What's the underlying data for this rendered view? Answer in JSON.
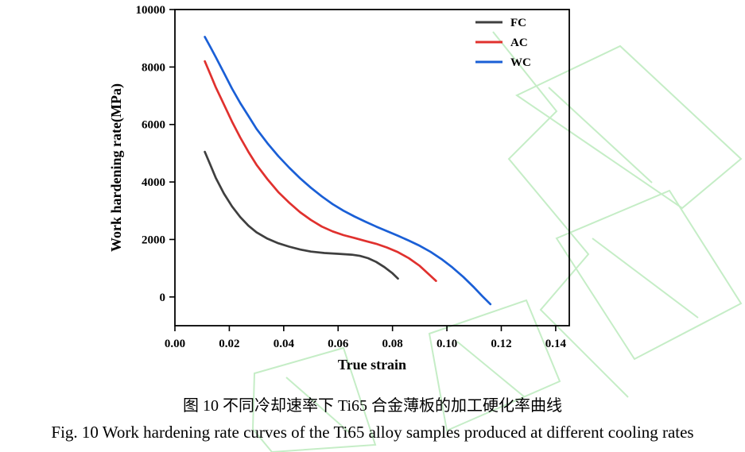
{
  "captions": {
    "chinese": "图 10  不同冷却速率下 Ti65 合金薄板的加工硬化率曲线",
    "english": "Fig. 10 Work hardening rate curves of the Ti65 alloy samples produced at different cooling rates"
  },
  "watermark_color": "#7fd882",
  "chart_data": {
    "type": "line",
    "title": "",
    "xlabel": "True strain",
    "ylabel": "Work hardening rate(MPa)",
    "xlim": [
      0.0,
      0.145
    ],
    "ylim": [
      -1000,
      10000
    ],
    "grid": false,
    "legend_position": "top-right",
    "xticks": [
      0.0,
      0.02,
      0.04,
      0.06,
      0.08,
      0.1,
      0.12,
      0.14
    ],
    "xtick_labels": [
      "0.00",
      "0.02",
      "0.04",
      "0.06",
      "0.08",
      "0.10",
      "0.12",
      "0.14"
    ],
    "yticks": [
      0,
      2000,
      4000,
      6000,
      8000,
      10000
    ],
    "ytick_labels": [
      "0",
      "2000",
      "4000",
      "6000",
      "8000",
      "10000"
    ],
    "series": [
      {
        "name": "FC",
        "color": "#3f3f3f",
        "points": [
          [
            0.011,
            5050
          ],
          [
            0.013,
            4600
          ],
          [
            0.015,
            4150
          ],
          [
            0.018,
            3600
          ],
          [
            0.021,
            3150
          ],
          [
            0.024,
            2780
          ],
          [
            0.027,
            2480
          ],
          [
            0.03,
            2250
          ],
          [
            0.034,
            2030
          ],
          [
            0.038,
            1870
          ],
          [
            0.042,
            1750
          ],
          [
            0.046,
            1650
          ],
          [
            0.05,
            1580
          ],
          [
            0.055,
            1530
          ],
          [
            0.06,
            1500
          ],
          [
            0.065,
            1470
          ],
          [
            0.068,
            1430
          ],
          [
            0.071,
            1350
          ],
          [
            0.074,
            1220
          ],
          [
            0.077,
            1040
          ],
          [
            0.08,
            820
          ],
          [
            0.082,
            640
          ]
        ]
      },
      {
        "name": "AC",
        "color": "#e0312e",
        "points": [
          [
            0.011,
            8200
          ],
          [
            0.013,
            7750
          ],
          [
            0.015,
            7300
          ],
          [
            0.018,
            6700
          ],
          [
            0.021,
            6100
          ],
          [
            0.024,
            5550
          ],
          [
            0.027,
            5050
          ],
          [
            0.03,
            4600
          ],
          [
            0.034,
            4100
          ],
          [
            0.038,
            3650
          ],
          [
            0.042,
            3280
          ],
          [
            0.046,
            2950
          ],
          [
            0.05,
            2680
          ],
          [
            0.054,
            2450
          ],
          [
            0.058,
            2280
          ],
          [
            0.062,
            2150
          ],
          [
            0.066,
            2050
          ],
          [
            0.07,
            1950
          ],
          [
            0.074,
            1850
          ],
          [
            0.078,
            1720
          ],
          [
            0.082,
            1560
          ],
          [
            0.086,
            1350
          ],
          [
            0.09,
            1080
          ],
          [
            0.093,
            820
          ],
          [
            0.096,
            560
          ]
        ]
      },
      {
        "name": "WC",
        "color": "#1a5fd6",
        "points": [
          [
            0.011,
            9050
          ],
          [
            0.013,
            8700
          ],
          [
            0.015,
            8350
          ],
          [
            0.018,
            7800
          ],
          [
            0.021,
            7250
          ],
          [
            0.024,
            6750
          ],
          [
            0.027,
            6300
          ],
          [
            0.03,
            5850
          ],
          [
            0.034,
            5350
          ],
          [
            0.038,
            4900
          ],
          [
            0.042,
            4500
          ],
          [
            0.046,
            4130
          ],
          [
            0.05,
            3800
          ],
          [
            0.054,
            3500
          ],
          [
            0.058,
            3230
          ],
          [
            0.062,
            3000
          ],
          [
            0.066,
            2800
          ],
          [
            0.07,
            2620
          ],
          [
            0.074,
            2450
          ],
          [
            0.078,
            2290
          ],
          [
            0.082,
            2130
          ],
          [
            0.086,
            1960
          ],
          [
            0.09,
            1780
          ],
          [
            0.094,
            1570
          ],
          [
            0.098,
            1320
          ],
          [
            0.102,
            1030
          ],
          [
            0.106,
            700
          ],
          [
            0.11,
            330
          ],
          [
            0.113,
            30
          ],
          [
            0.116,
            -250
          ]
        ]
      }
    ]
  }
}
